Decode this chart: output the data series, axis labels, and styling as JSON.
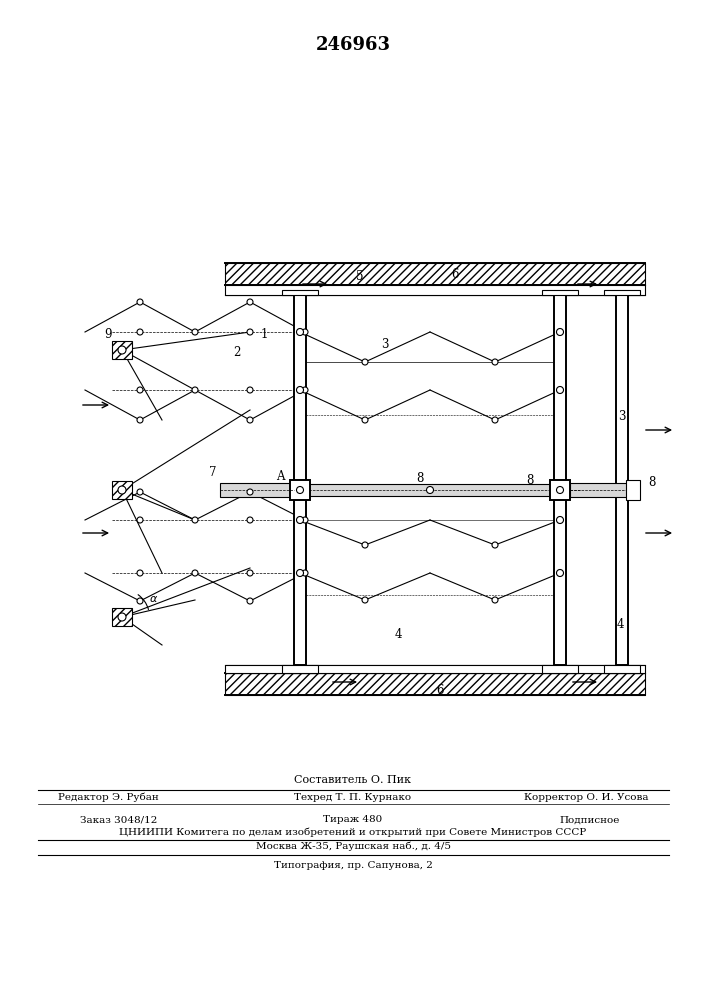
{
  "title": "246963",
  "bg_color": "#ffffff",
  "line_color": "#000000",
  "footer_line0": "Составитель О. Пик",
  "footer_editor": "Редактор Э. Рубан",
  "footer_tech": "Техред Т. П. Курнако",
  "footer_corr": "Корректор О. И. Усова",
  "footer_order": "Заказ 3048/12",
  "footer_tirazh": "Тираж 480",
  "footer_podp": "Подписное",
  "footer_cniip": "ЦНИИПИ Комитега по делам изобретений и открытий при Совете Министров СССР",
  "footer_moscow": "Москва Ж-35, Раушская наб., д. 4/5",
  "footer_typo": "Типография, пр. Сапунова, 2"
}
